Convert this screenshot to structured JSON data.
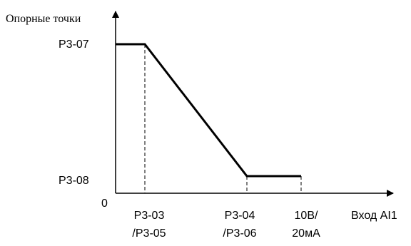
{
  "diagram": {
    "y_axis_label": "Опорные точки",
    "x_axis_label": "Вход AI1",
    "origin_label": "0",
    "y_ticks": [
      {
        "id": "p307",
        "label": "P3-07",
        "level": "max"
      },
      {
        "id": "p308",
        "label": "P3-08",
        "level": "min"
      }
    ],
    "x_ticks": [
      {
        "id": "p303",
        "line1": "P3-03",
        "line2": "/P3-05"
      },
      {
        "id": "p304",
        "line1": "P3-04",
        "line2": "/P3-06"
      },
      {
        "id": "full",
        "line1": "10В/",
        "line2": "20мА"
      }
    ],
    "curve": [
      {
        "x": "input_min",
        "y": "P3-07"
      },
      {
        "x": "P3-03/P3-05",
        "y": "P3-07"
      },
      {
        "x": "P3-04/P3-06",
        "y": "P3-08"
      },
      {
        "x": "10В/20мА",
        "y": "P3-08"
      }
    ],
    "colors": {
      "line": "#000000",
      "background": "#ffffff"
    }
  }
}
